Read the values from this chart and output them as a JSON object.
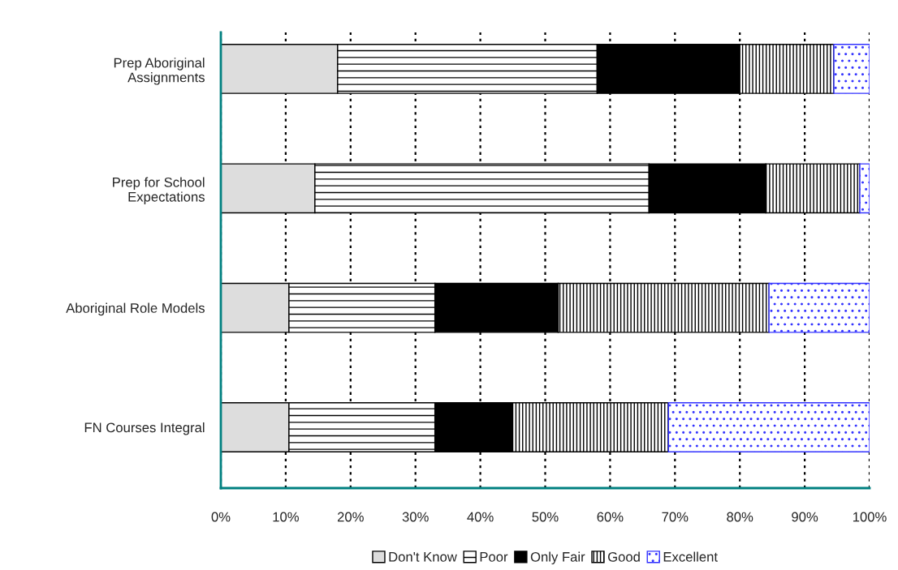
{
  "chart_data": {
    "type": "bar",
    "orientation": "horizontal",
    "stacked": true,
    "categories": [
      "Prep Aboriginal\nAssignments",
      "Prep for School\nExpectations",
      "Aboriginal Role Models",
      "FN Courses Integral"
    ],
    "series": [
      {
        "name": "Don't Know",
        "color": "#dddddd",
        "values": [
          18,
          14.5,
          10.5,
          10.5
        ]
      },
      {
        "name": "Poor",
        "color": "#000000",
        "values": [
          40,
          51.5,
          22.5,
          22.5
        ]
      },
      {
        "name": "Only Fair",
        "color": "#000000",
        "values": [
          22,
          18,
          19,
          12
        ]
      },
      {
        "name": "Good",
        "color": "#000000",
        "values": [
          14.5,
          14.5,
          32.5,
          24
        ]
      },
      {
        "name": "Excellent",
        "color": "#3333ff",
        "values": [
          5.5,
          1.5,
          15.5,
          31
        ]
      }
    ],
    "xlim": [
      0,
      100
    ],
    "xticks": [
      {
        "value": 0,
        "label": "0%"
      },
      {
        "value": 10,
        "label": "10%"
      },
      {
        "value": 20,
        "label": "20%"
      },
      {
        "value": 30,
        "label": "30%"
      },
      {
        "value": 40,
        "label": "40%"
      },
      {
        "value": 50,
        "label": "50%"
      },
      {
        "value": 60,
        "label": "60%"
      },
      {
        "value": 70,
        "label": "70%"
      },
      {
        "value": 80,
        "label": "80%"
      },
      {
        "value": 90,
        "label": "90%"
      },
      {
        "value": 100,
        "label": "100%"
      }
    ],
    "grid": "x",
    "legend": "bottom"
  }
}
